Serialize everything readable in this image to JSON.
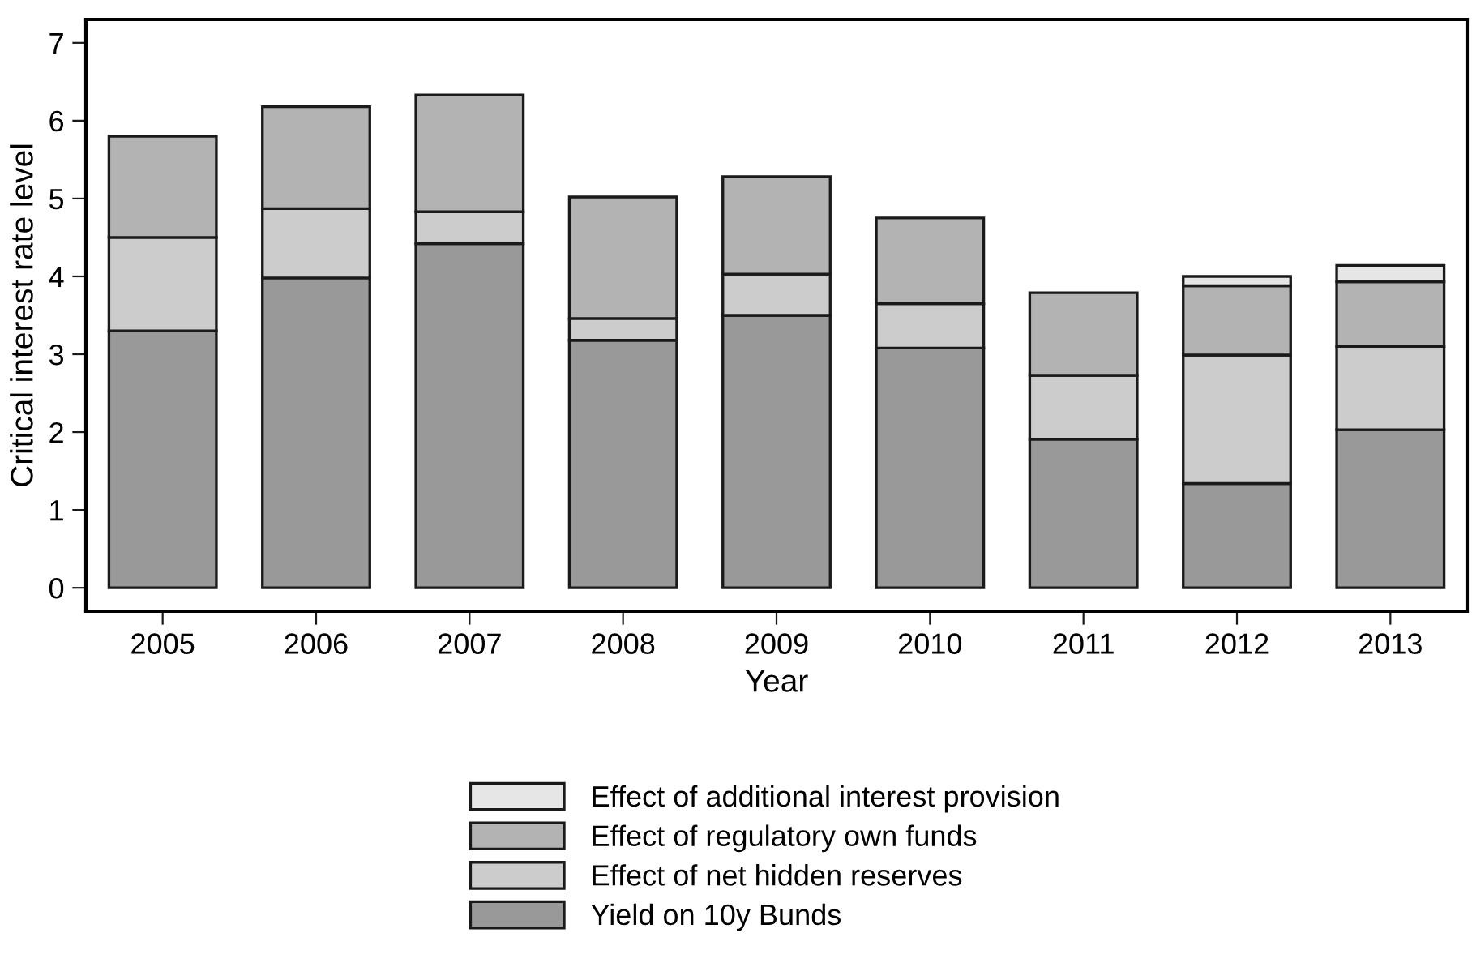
{
  "chart_data": {
    "type": "bar",
    "stacked": true,
    "xlabel": "Year",
    "ylabel": "Critical interest rate level",
    "categories": [
      "2005",
      "2006",
      "2007",
      "2008",
      "2009",
      "2010",
      "2011",
      "2012",
      "2013"
    ],
    "series": [
      {
        "name": "Yield on 10y Bunds",
        "color": "#999999",
        "values": [
          3.3,
          3.98,
          4.42,
          3.18,
          3.5,
          3.08,
          1.91,
          1.34,
          2.03
        ]
      },
      {
        "name": "Effect of net hidden reserves",
        "color": "#cccccc",
        "values": [
          1.2,
          0.89,
          0.41,
          0.28,
          0.53,
          0.57,
          0.82,
          1.65,
          1.07
        ]
      },
      {
        "name": "Effect of regulatory own funds",
        "color": "#b3b3b3",
        "values": [
          1.3,
          1.31,
          1.5,
          1.56,
          1.25,
          1.1,
          1.06,
          0.89,
          0.83
        ]
      },
      {
        "name": "Effect of additional interest provision",
        "color": "#e6e6e6",
        "values": [
          null,
          null,
          null,
          null,
          null,
          null,
          null,
          0.12,
          0.21
        ]
      }
    ],
    "ylim": [
      -0.3,
      7.3
    ],
    "yticks": [
      0,
      1,
      2,
      3,
      4,
      5,
      6,
      7
    ],
    "grid": false,
    "legend": "bottom"
  }
}
